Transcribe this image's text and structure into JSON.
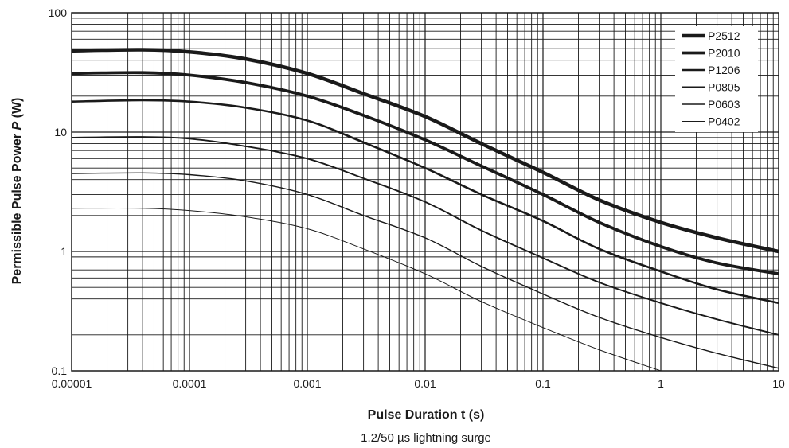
{
  "chart_data": {
    "type": "line",
    "xlabel": "Pulse Duration t (s)",
    "ylabel_prefix": "Permissible Pulse Power ",
    "ylabel_var": "P",
    "ylabel_suffix": " (W)",
    "caption": "1.2/50 µs lightning surge",
    "x_scale": "log",
    "y_scale": "log",
    "xlim": [
      1e-05,
      10
    ],
    "ylim": [
      0.1,
      100
    ],
    "grid": true,
    "legend_position": "top-right",
    "x_ticks": [
      {
        "value": 1e-05,
        "label": "0.00001"
      },
      {
        "value": 0.0001,
        "label": "0.0001"
      },
      {
        "value": 0.001,
        "label": "0.001"
      },
      {
        "value": 0.01,
        "label": "0.01"
      },
      {
        "value": 0.1,
        "label": "0.1"
      },
      {
        "value": 1,
        "label": "1"
      },
      {
        "value": 10,
        "label": "10"
      }
    ],
    "y_ticks": [
      {
        "value": 0.1,
        "label": "0.1"
      },
      {
        "value": 1,
        "label": "1"
      },
      {
        "value": 10,
        "label": "10"
      },
      {
        "value": 100,
        "label": "100"
      }
    ],
    "series": [
      {
        "name": "P2512",
        "stroke": 4.5,
        "color": "#1a1a1a",
        "x": [
          1e-05,
          4e-05,
          0.0001,
          0.0003,
          0.001,
          0.003,
          0.01,
          0.03,
          0.1,
          0.3,
          1,
          3,
          10
        ],
        "y": [
          48,
          49,
          47,
          41,
          31,
          21,
          13.5,
          8,
          4.6,
          2.7,
          1.75,
          1.3,
          1.0
        ]
      },
      {
        "name": "P2010",
        "stroke": 3.8,
        "color": "#1a1a1a",
        "x": [
          1e-05,
          4e-05,
          0.0001,
          0.0003,
          0.001,
          0.003,
          0.01,
          0.03,
          0.1,
          0.3,
          1,
          3,
          10
        ],
        "y": [
          31,
          31.5,
          30,
          26,
          20,
          13.8,
          8.6,
          5.2,
          3.0,
          1.75,
          1.1,
          0.8,
          0.65
        ]
      },
      {
        "name": "P1206",
        "stroke": 2.6,
        "color": "#1a1a1a",
        "x": [
          1e-05,
          4e-05,
          0.0001,
          0.0003,
          0.001,
          0.003,
          0.01,
          0.03,
          0.1,
          0.3,
          1,
          3,
          10
        ],
        "y": [
          18,
          18.5,
          18,
          16,
          12.5,
          8.2,
          5.0,
          3.0,
          1.8,
          1.05,
          0.68,
          0.48,
          0.37
        ]
      },
      {
        "name": "P0805",
        "stroke": 1.9,
        "color": "#1a1a1a",
        "x": [
          1e-05,
          4e-05,
          0.0001,
          0.0003,
          0.001,
          0.003,
          0.01,
          0.03,
          0.1,
          0.3,
          1,
          3,
          10
        ],
        "y": [
          9,
          9.1,
          8.8,
          7.6,
          6.0,
          4.1,
          2.6,
          1.5,
          0.88,
          0.55,
          0.37,
          0.27,
          0.2
        ]
      },
      {
        "name": "P0603",
        "stroke": 1.4,
        "color": "#1a1a1a",
        "x": [
          1e-05,
          4e-05,
          0.0001,
          0.0003,
          0.001,
          0.003,
          0.01,
          0.03,
          0.1,
          0.3,
          1,
          3,
          10
        ],
        "y": [
          4.5,
          4.55,
          4.4,
          3.9,
          3.0,
          2.0,
          1.3,
          0.75,
          0.44,
          0.28,
          0.19,
          0.14,
          0.105
        ]
      },
      {
        "name": "P0402",
        "stroke": 1.0,
        "color": "#1a1a1a",
        "x": [
          1e-05,
          4e-05,
          0.0001,
          0.0003,
          0.001,
          0.003,
          0.01,
          0.03,
          0.1,
          0.3,
          1
        ],
        "y": [
          2.3,
          2.3,
          2.2,
          1.95,
          1.55,
          1.05,
          0.65,
          0.38,
          0.23,
          0.15,
          0.1
        ]
      }
    ]
  }
}
